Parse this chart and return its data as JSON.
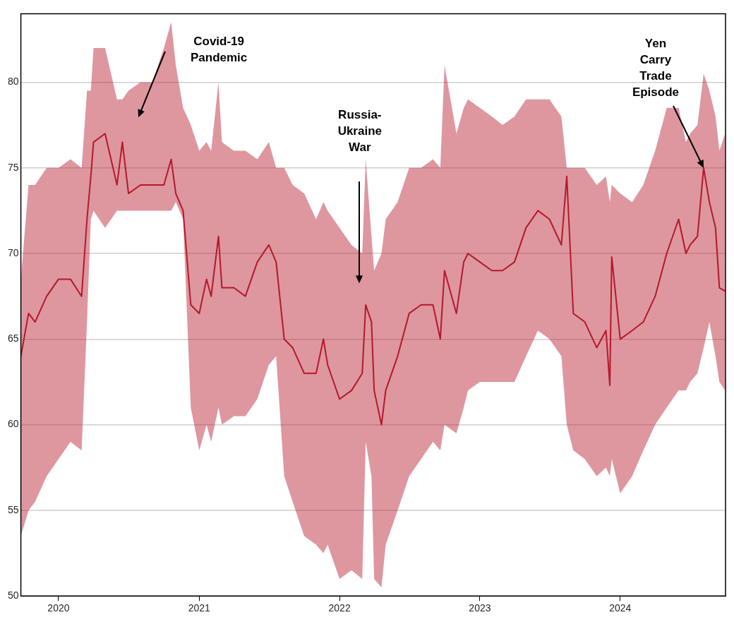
{
  "chart_data": {
    "type": "line",
    "xlim": [
      "2019-09-25",
      "2024-10-01"
    ],
    "xticks": [
      "2020",
      "2021",
      "2022",
      "2023",
      "2024"
    ],
    "ylim": [
      50,
      84
    ],
    "yticks": [
      50,
      55,
      60,
      65,
      70,
      75,
      80
    ],
    "grid": "y",
    "legend": false,
    "marker": "none",
    "line_style": "solid",
    "x": [
      "2019-09-25",
      "2019-10-15",
      "2019-11-01",
      "2019-12-01",
      "2020-01-01",
      "2020-02-01",
      "2020-03-01",
      "2020-03-15",
      "2020-03-25",
      "2020-04-01",
      "2020-05-01",
      "2020-06-01",
      "2020-06-15",
      "2020-07-01",
      "2020-08-01",
      "2020-09-01",
      "2020-10-01",
      "2020-10-20",
      "2020-11-01",
      "2020-11-20",
      "2020-12-10",
      "2021-01-01",
      "2021-01-20",
      "2021-02-01",
      "2021-02-20",
      "2021-03-01",
      "2021-04-01",
      "2021-05-01",
      "2021-06-01",
      "2021-07-01",
      "2021-07-20",
      "2021-08-10",
      "2021-09-01",
      "2021-10-01",
      "2021-11-01",
      "2021-11-20",
      "2021-12-01",
      "2022-01-01",
      "2022-02-01",
      "2022-03-01",
      "2022-03-10",
      "2022-03-25",
      "2022-04-01",
      "2022-04-20",
      "2022-05-01",
      "2022-06-01",
      "2022-07-01",
      "2022-08-01",
      "2022-09-01",
      "2022-09-20",
      "2022-10-01",
      "2022-11-01",
      "2022-11-20",
      "2022-12-01",
      "2023-01-01",
      "2023-02-01",
      "2023-03-01",
      "2023-04-01",
      "2023-05-01",
      "2023-06-01",
      "2023-07-01",
      "2023-08-01",
      "2023-08-15",
      "2023-09-01",
      "2023-10-01",
      "2023-11-01",
      "2023-11-25",
      "2023-12-05",
      "2023-12-10",
      "2024-01-01",
      "2024-02-01",
      "2024-03-01",
      "2024-04-01",
      "2024-05-01",
      "2024-06-01",
      "2024-06-20",
      "2024-07-01",
      "2024-07-20",
      "2024-08-05",
      "2024-08-20",
      "2024-09-05",
      "2024-09-15",
      "2024-09-30"
    ],
    "series": [
      {
        "color": "#b5182b",
        "values": [
          64,
          66.5,
          66,
          67.5,
          68.5,
          68.5,
          67.5,
          72,
          74.5,
          76.5,
          77,
          74,
          76.5,
          73.5,
          74,
          74,
          74,
          75.5,
          73.5,
          72.5,
          67,
          66.5,
          68.5,
          67.5,
          71,
          68,
          68,
          67.5,
          69.5,
          70.5,
          69.5,
          65,
          64.5,
          63,
          63,
          65,
          63.5,
          61.5,
          62,
          63,
          67,
          66,
          62,
          60,
          62,
          64,
          66.5,
          67,
          67,
          65,
          69,
          66.5,
          69.5,
          70,
          69.5,
          69,
          69,
          69.5,
          71.5,
          72.5,
          72,
          70.5,
          74.5,
          66.5,
          66,
          64.5,
          65.5,
          62.3,
          69.8,
          65,
          65.5,
          66,
          67.5,
          70,
          72,
          70,
          70.5,
          71,
          75,
          73,
          71.5,
          68,
          67.8
        ],
        "upper": [
          68.5,
          74,
          74,
          75,
          75,
          75.5,
          75,
          79.5,
          79.5,
          82,
          82,
          79,
          79,
          79.5,
          80,
          80,
          82,
          83.5,
          81,
          78.5,
          77.5,
          76,
          76.5,
          76,
          80,
          76.5,
          76,
          76,
          75.5,
          76.5,
          75,
          75,
          74,
          73.5,
          72,
          73,
          72.5,
          71.5,
          70.5,
          70,
          75.5,
          71,
          69,
          70,
          72,
          73,
          75,
          75,
          75.5,
          75,
          81,
          77,
          78.5,
          79,
          78.5,
          78,
          77.5,
          78,
          79,
          79,
          79,
          78,
          75,
          75,
          75,
          74,
          74.5,
          73,
          74,
          73.5,
          73,
          74,
          76,
          78.5,
          78.5,
          76.5,
          77,
          77.5,
          80.5,
          79.5,
          78,
          76,
          77
        ],
        "lower": [
          53.5,
          55,
          55.5,
          57,
          58,
          59,
          58.5,
          66,
          72,
          72.5,
          71.5,
          72.5,
          72.5,
          72.5,
          72.5,
          72.5,
          72.5,
          72.5,
          73,
          72,
          61,
          58.5,
          60,
          59,
          61,
          60,
          60.5,
          60.5,
          61.5,
          63.5,
          64,
          57,
          55.5,
          53.5,
          53,
          52.5,
          53,
          51,
          51.5,
          51,
          59,
          57,
          51,
          50.5,
          53,
          55,
          57,
          58,
          59,
          58.5,
          60,
          59.5,
          61,
          62,
          62.5,
          62.5,
          62.5,
          62.5,
          64,
          65.5,
          65,
          64,
          60,
          58.5,
          58,
          57,
          57.5,
          57,
          58,
          56,
          57,
          58.5,
          60,
          61,
          62,
          62,
          62.5,
          63,
          64.5,
          66,
          64,
          62.5,
          62
        ]
      }
    ],
    "annotations": [
      "Covid-19 Pandemic",
      "Russia-Ukraine War",
      {
        "text": "Yen Carry Trade Episode",
        "x": "2024-08-05",
        "y": 75
      }
    ]
  }
}
